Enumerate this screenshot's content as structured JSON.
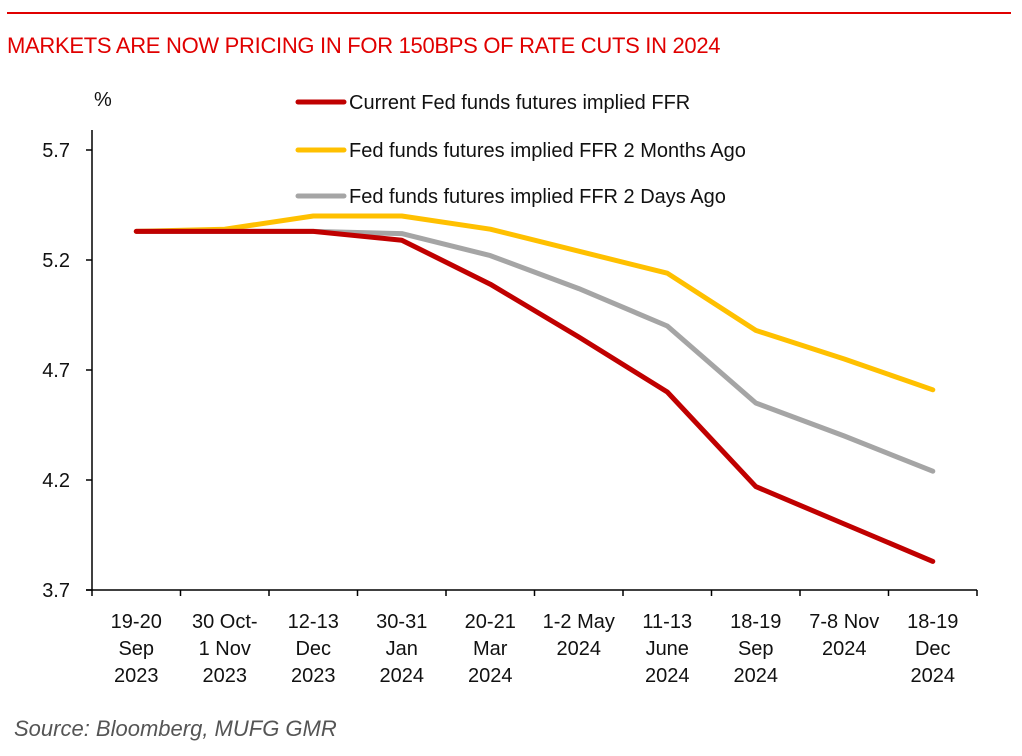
{
  "header": {
    "title": "MARKETS ARE NOW PRICING IN FOR 150BPS OF RATE CUTS IN 2024"
  },
  "footer": {
    "source": "Source: Bloomberg, MUFG GMR"
  },
  "chart_data": {
    "type": "line",
    "title": "MARKETS ARE NOW PRICING IN FOR 150BPS OF RATE CUTS IN 2024",
    "xlabel": "",
    "ylabel": "%",
    "ylim": [
      3.7,
      5.9
    ],
    "yticks": [
      3.7,
      4.2,
      4.7,
      5.2,
      5.7
    ],
    "ytick_labels": [
      "3.7",
      "4.2",
      "4.7",
      "5.2",
      "5.7"
    ],
    "grid": false,
    "legend_position": "top-center",
    "categories": [
      [
        "19-20",
        "Sep",
        "2023"
      ],
      [
        "30 Oct-",
        "1 Nov",
        "2023"
      ],
      [
        "12-13",
        "Dec",
        "2023"
      ],
      [
        "30-31",
        "Jan",
        "2024"
      ],
      [
        "20-21",
        "Mar",
        "2024"
      ],
      [
        "1-2 May",
        "2024"
      ],
      [
        "11-13",
        "June",
        "2024"
      ],
      [
        "18-19",
        "Sep",
        "2024"
      ],
      [
        "7-8 Nov",
        "2024"
      ],
      [
        "18-19",
        "Dec",
        "2024"
      ]
    ],
    "series": [
      {
        "name": "Current Fed funds futures implied FFR",
        "color": "#c00000",
        "values": [
          5.33,
          5.33,
          5.33,
          5.29,
          5.09,
          4.85,
          4.6,
          4.17,
          4.0,
          3.83
        ]
      },
      {
        "name": "Fed funds futures implied FFR 2 Months Ago",
        "color": "#ffc000",
        "values": [
          5.33,
          5.34,
          5.4,
          5.4,
          5.34,
          5.24,
          5.14,
          4.88,
          4.75,
          4.61
        ]
      },
      {
        "name": "Fed funds futures implied FFR 2 Days Ago",
        "color": "#a5a5a5",
        "values": [
          5.33,
          5.33,
          5.33,
          5.32,
          5.22,
          5.07,
          4.9,
          4.55,
          4.4,
          4.24
        ]
      }
    ]
  }
}
